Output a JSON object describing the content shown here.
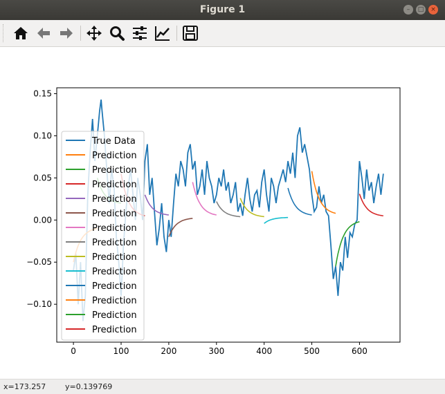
{
  "window": {
    "title": "Figure 1"
  },
  "toolbar": {
    "buttons": [
      {
        "name": "home-icon"
      },
      {
        "name": "back-arrow-icon"
      },
      {
        "name": "forward-arrow-icon"
      },
      {
        "name": "pan-icon"
      },
      {
        "name": "zoom-icon"
      },
      {
        "name": "subplots-icon"
      },
      {
        "name": "customize-icon"
      },
      {
        "name": "save-icon"
      }
    ]
  },
  "status": {
    "x_readout": "x=173.257",
    "y_readout": "y=0.139769"
  },
  "colors": {
    "C0": "#1f77b4",
    "C1": "#ff7f0e",
    "C2": "#2ca02c",
    "C3": "#d62728",
    "C4": "#9467bd",
    "C5": "#8c564b",
    "C6": "#e377c2",
    "C7": "#7f7f7f",
    "C8": "#bcbd22",
    "C9": "#17becf"
  },
  "chart_data": {
    "type": "line",
    "xlim": [
      -35,
      685
    ],
    "ylim": [
      -0.145,
      0.157
    ],
    "xticks": [
      "0",
      "100",
      "200",
      "300",
      "400",
      "500",
      "600"
    ],
    "yticks": [
      "−0.10",
      "−0.05",
      "0.00",
      "0.05",
      "0.10",
      "0.15"
    ],
    "xtick_values": [
      0,
      100,
      200,
      300,
      400,
      500,
      600
    ],
    "ytick_values": [
      -0.1,
      -0.05,
      0.0,
      0.05,
      0.1,
      0.15
    ],
    "legend_placement": "center-left",
    "grid": false,
    "series": [
      {
        "name": "True Data",
        "color": "#1f77b4",
        "x": [
          0,
          5,
          10,
          15,
          20,
          25,
          30,
          35,
          40,
          45,
          50,
          55,
          58,
          60,
          65,
          70,
          75,
          80,
          85,
          90,
          95,
          100,
          105,
          110,
          115,
          120,
          125,
          130,
          135,
          140,
          145,
          150,
          155,
          160,
          165,
          170,
          175,
          180,
          185,
          190,
          195,
          200,
          205,
          210,
          215,
          220,
          225,
          230,
          235,
          240,
          245,
          250,
          255,
          260,
          265,
          270,
          275,
          280,
          285,
          290,
          295,
          300,
          305,
          310,
          315,
          320,
          325,
          330,
          335,
          340,
          345,
          350,
          355,
          360,
          365,
          370,
          375,
          380,
          385,
          390,
          395,
          400,
          405,
          410,
          415,
          420,
          425,
          430,
          435,
          440,
          445,
          450,
          455,
          460,
          465,
          470,
          475,
          480,
          485,
          490,
          495,
          500,
          505,
          510,
          515,
          520,
          525,
          530,
          535,
          540,
          545,
          550,
          555,
          560,
          565,
          570,
          575,
          580,
          585,
          590,
          595,
          600,
          605,
          610,
          615,
          620,
          625,
          630,
          635,
          640,
          645,
          650
        ],
        "y": [
          -0.06,
          -0.04,
          -0.1,
          -0.05,
          -0.12,
          -0.09,
          0.03,
          0.08,
          0.12,
          0.07,
          0.1,
          0.13,
          0.143,
          0.13,
          0.1,
          0.06,
          0.02,
          0.06,
          0.04,
          -0.02,
          -0.05,
          -0.09,
          -0.03,
          0.01,
          0.04,
          0.06,
          0.03,
          0.0,
          0.05,
          0.03,
          0.0,
          0.07,
          0.09,
          0.03,
          0.05,
          0.01,
          -0.03,
          -0.01,
          0.02,
          -0.02,
          -0.038,
          0.0,
          -0.02,
          0.02,
          0.055,
          0.04,
          0.07,
          0.06,
          0.04,
          0.08,
          0.09,
          0.06,
          0.07,
          0.03,
          0.04,
          0.06,
          0.03,
          0.07,
          0.05,
          0.04,
          0.02,
          0.03,
          0.05,
          0.04,
          0.06,
          0.035,
          0.045,
          0.02,
          0.03,
          0.045,
          0.01,
          0.02,
          0.005,
          0.03,
          0.05,
          0.025,
          0.01,
          0.03,
          0.035,
          0.015,
          0.045,
          0.06,
          0.03,
          0.01,
          0.05,
          0.04,
          0.02,
          0.04,
          0.05,
          0.06,
          0.045,
          0.07,
          0.055,
          0.08,
          0.05,
          0.1,
          0.11,
          0.08,
          0.09,
          0.075,
          0.06,
          0.03,
          0.01,
          0.015,
          0.04,
          0.02,
          0.03,
          0.01,
          0.005,
          -0.03,
          -0.07,
          -0.055,
          -0.09,
          -0.05,
          -0.06,
          -0.02,
          -0.045,
          -0.015,
          -0.02,
          -0.005,
          0.0,
          0.07,
          0.05,
          0.025,
          0.06,
          0.035,
          0.045,
          0.02,
          0.04,
          0.055,
          0.03,
          0.055
        ],
        "front_from": 150
      },
      {
        "name": "Prediction",
        "color": "#ff7f0e",
        "x": [
          0,
          50
        ],
        "y": [
          -0.05,
          -0.01
        ],
        "curve": "decay"
      },
      {
        "name": "Prediction",
        "color": "#2ca02c",
        "x": [
          50,
          100
        ],
        "y": [
          0.05,
          0.02
        ],
        "curve": "decay"
      },
      {
        "name": "Prediction",
        "color": "#d62728",
        "x": [
          100,
          150
        ],
        "y": [
          0.055,
          0.005
        ],
        "curve": "decay"
      },
      {
        "name": "Prediction",
        "color": "#9467bd",
        "x": [
          150,
          200
        ],
        "y": [
          0.03,
          0.006
        ],
        "curve": "decay"
      },
      {
        "name": "Prediction",
        "color": "#8c564b",
        "x": [
          200,
          250
        ],
        "y": [
          -0.02,
          0.002
        ],
        "curve": "decay"
      },
      {
        "name": "Prediction",
        "color": "#e377c2",
        "x": [
          250,
          300
        ],
        "y": [
          0.045,
          0.006
        ],
        "curve": "decay"
      },
      {
        "name": "Prediction",
        "color": "#7f7f7f",
        "x": [
          300,
          350
        ],
        "y": [
          0.022,
          0.004
        ],
        "curve": "decay"
      },
      {
        "name": "Prediction",
        "color": "#bcbd22",
        "x": [
          350,
          400
        ],
        "y": [
          0.026,
          0.004
        ],
        "curve": "decay"
      },
      {
        "name": "Prediction",
        "color": "#17becf",
        "x": [
          400,
          450
        ],
        "y": [
          -0.004,
          0.003
        ],
        "curve": "decay"
      },
      {
        "name": "Prediction",
        "color": "#1f77b4",
        "x": [
          450,
          500
        ],
        "y": [
          0.038,
          0.006
        ],
        "curve": "decay"
      },
      {
        "name": "Prediction",
        "color": "#ff7f0e",
        "x": [
          500,
          550
        ],
        "y": [
          0.058,
          0.008
        ],
        "curve": "decay"
      },
      {
        "name": "Prediction",
        "color": "#2ca02c",
        "x": [
          550,
          600
        ],
        "y": [
          -0.055,
          -0.002
        ],
        "curve": "decay"
      },
      {
        "name": "Prediction",
        "color": "#d62728",
        "x": [
          600,
          650
        ],
        "y": [
          0.031,
          0.005
        ],
        "curve": "decay"
      }
    ]
  }
}
